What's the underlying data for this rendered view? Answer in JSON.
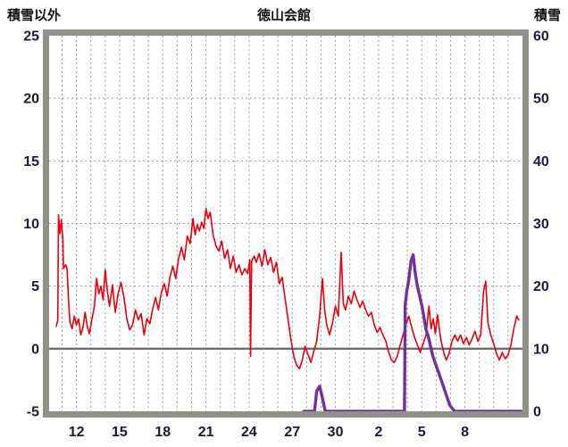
{
  "header": {
    "left_label": "積雪以外",
    "title": "徳山会館",
    "right_label": "積雪"
  },
  "chart_data": {
    "type": "line",
    "title": "徳山会館",
    "legend": "off",
    "grid": "on",
    "x_axis": {
      "description": "day of month, spanning from mid month (11) across month end into next month",
      "range": [
        10.1,
        43.0
      ],
      "daily_gridlines": true,
      "ticks": [
        {
          "day": 12,
          "label": "12"
        },
        {
          "day": 15,
          "label": "15"
        },
        {
          "day": 18,
          "label": "18"
        },
        {
          "day": 21,
          "label": "21"
        },
        {
          "day": 24,
          "label": "24"
        },
        {
          "day": 27,
          "label": "27"
        },
        {
          "day": 30,
          "label": "30"
        },
        {
          "day": 33,
          "label": "2"
        },
        {
          "day": 36,
          "label": "5"
        },
        {
          "day": 39,
          "label": "8"
        }
      ]
    },
    "y_left": {
      "label": "積雪以外",
      "range": [
        -5,
        25
      ],
      "ticks": [
        25,
        20,
        15,
        10,
        5,
        0,
        -5
      ],
      "gridline_values": [
        20,
        15,
        10,
        5
      ],
      "zero_line": 0
    },
    "y_right": {
      "label": "積雪",
      "range": [
        0,
        60
      ],
      "ticks": [
        60,
        50,
        40,
        30,
        20,
        10,
        0
      ]
    },
    "styles": {
      "background": "#ffffff",
      "frame_color": "#8f9287",
      "grid_color": "#9a9a9a",
      "zero_line_color": "#6e6e6e",
      "axis_text_color": "#1a1a3c",
      "non_snow_color": "#e8000f",
      "snow_color": "#7030a0"
    },
    "series": [
      {
        "name": "積雪以外",
        "axis": "left",
        "color": "#e8000f",
        "width": 1.6,
        "points": [
          [
            10.6,
            1.8
          ],
          [
            10.7,
            2.3
          ],
          [
            10.75,
            10.7
          ],
          [
            10.85,
            9.2
          ],
          [
            10.95,
            10.3
          ],
          [
            11.05,
            8.8
          ],
          [
            11.1,
            6.4
          ],
          [
            11.25,
            6.7
          ],
          [
            11.35,
            6.4
          ],
          [
            11.45,
            3.9
          ],
          [
            11.55,
            2.1
          ],
          [
            11.7,
            1.6
          ],
          [
            11.85,
            2.6
          ],
          [
            12.0,
            1.9
          ],
          [
            12.15,
            2.4
          ],
          [
            12.3,
            1.1
          ],
          [
            12.45,
            1.7
          ],
          [
            12.6,
            2.9
          ],
          [
            12.75,
            1.8
          ],
          [
            12.9,
            1.2
          ],
          [
            13.05,
            2.2
          ],
          [
            13.25,
            3.4
          ],
          [
            13.4,
            5.6
          ],
          [
            13.55,
            4.4
          ],
          [
            13.7,
            5.0
          ],
          [
            13.85,
            3.9
          ],
          [
            14.0,
            6.3
          ],
          [
            14.15,
            4.6
          ],
          [
            14.3,
            3.4
          ],
          [
            14.5,
            5.1
          ],
          [
            14.7,
            2.9
          ],
          [
            14.9,
            4.4
          ],
          [
            15.1,
            5.3
          ],
          [
            15.3,
            4.1
          ],
          [
            15.5,
            2.4
          ],
          [
            15.7,
            1.5
          ],
          [
            15.9,
            1.9
          ],
          [
            16.1,
            3.1
          ],
          [
            16.3,
            2.3
          ],
          [
            16.5,
            2.8
          ],
          [
            16.7,
            1.1
          ],
          [
            16.9,
            2.4
          ],
          [
            17.1,
            2.0
          ],
          [
            17.3,
            3.2
          ],
          [
            17.5,
            4.1
          ],
          [
            17.7,
            3.1
          ],
          [
            17.9,
            4.5
          ],
          [
            18.1,
            5.2
          ],
          [
            18.3,
            4.2
          ],
          [
            18.5,
            5.7
          ],
          [
            18.7,
            6.6
          ],
          [
            18.9,
            5.6
          ],
          [
            19.1,
            7.2
          ],
          [
            19.3,
            8.1
          ],
          [
            19.5,
            7.1
          ],
          [
            19.7,
            9.0
          ],
          [
            19.9,
            8.4
          ],
          [
            20.1,
            10.4
          ],
          [
            20.25,
            9.1
          ],
          [
            20.4,
            9.9
          ],
          [
            20.55,
            9.4
          ],
          [
            20.7,
            10.1
          ],
          [
            20.85,
            9.6
          ],
          [
            21.0,
            11.2
          ],
          [
            21.15,
            10.4
          ],
          [
            21.3,
            10.9
          ],
          [
            21.5,
            9.1
          ],
          [
            21.7,
            8.2
          ],
          [
            21.9,
            7.8
          ],
          [
            22.1,
            8.6
          ],
          [
            22.3,
            7.2
          ],
          [
            22.5,
            7.9
          ],
          [
            22.7,
            6.4
          ],
          [
            22.9,
            7.4
          ],
          [
            23.1,
            6.1
          ],
          [
            23.3,
            6.7
          ],
          [
            23.5,
            5.9
          ],
          [
            23.7,
            6.4
          ],
          [
            23.9,
            6.0
          ],
          [
            24.05,
            7.1
          ],
          [
            24.1,
            -0.6
          ],
          [
            24.18,
            7.0
          ],
          [
            24.35,
            7.4
          ],
          [
            24.5,
            6.9
          ],
          [
            24.7,
            7.6
          ],
          [
            24.9,
            6.6
          ],
          [
            25.1,
            7.9
          ],
          [
            25.3,
            6.7
          ],
          [
            25.5,
            7.3
          ],
          [
            25.7,
            6.1
          ],
          [
            25.9,
            6.9
          ],
          [
            26.1,
            5.2
          ],
          [
            26.3,
            5.7
          ],
          [
            26.5,
            4.0
          ],
          [
            26.7,
            2.4
          ],
          [
            26.9,
            0.8
          ],
          [
            27.1,
            -0.6
          ],
          [
            27.3,
            -1.3
          ],
          [
            27.5,
            -1.6
          ],
          [
            27.7,
            -0.9
          ],
          [
            27.9,
            0.2
          ],
          [
            28.1,
            -0.5
          ],
          [
            28.3,
            -1.1
          ],
          [
            28.5,
            -0.2
          ],
          [
            28.7,
            0.6
          ],
          [
            28.9,
            2.6
          ],
          [
            29.1,
            5.6
          ],
          [
            29.25,
            3.1
          ],
          [
            29.4,
            1.9
          ],
          [
            29.6,
            1.1
          ],
          [
            29.8,
            2.1
          ],
          [
            30.0,
            3.4
          ],
          [
            30.2,
            2.6
          ],
          [
            30.4,
            7.7
          ],
          [
            30.55,
            3.6
          ],
          [
            30.7,
            3.1
          ],
          [
            30.9,
            4.2
          ],
          [
            31.1,
            3.6
          ],
          [
            31.3,
            4.6
          ],
          [
            31.5,
            3.9
          ],
          [
            31.7,
            3.3
          ],
          [
            31.9,
            3.8
          ],
          [
            32.1,
            3.1
          ],
          [
            32.3,
            2.6
          ],
          [
            32.5,
            2.9
          ],
          [
            32.7,
            1.9
          ],
          [
            32.9,
            1.3
          ],
          [
            33.1,
            1.7
          ],
          [
            33.3,
            1.1
          ],
          [
            33.5,
            0.6
          ],
          [
            33.7,
            -0.3
          ],
          [
            33.9,
            -0.9
          ],
          [
            34.1,
            -1.1
          ],
          [
            34.3,
            -0.6
          ],
          [
            34.5,
            0.3
          ],
          [
            34.7,
            1.1
          ],
          [
            34.9,
            1.9
          ],
          [
            35.1,
            2.6
          ],
          [
            35.3,
            1.7
          ],
          [
            35.5,
            0.9
          ],
          [
            35.7,
            0.3
          ],
          [
            35.9,
            -0.3
          ],
          [
            36.1,
            0.4
          ],
          [
            36.3,
            1.1
          ],
          [
            36.5,
            3.4
          ],
          [
            36.65,
            1.6
          ],
          [
            36.8,
            2.4
          ],
          [
            36.95,
            1.2
          ],
          [
            37.1,
            2.7
          ],
          [
            37.3,
            0.9
          ],
          [
            37.5,
            -0.2
          ],
          [
            37.7,
            -0.9
          ],
          [
            37.9,
            -0.4
          ],
          [
            38.1,
            0.6
          ],
          [
            38.3,
            1.1
          ],
          [
            38.5,
            0.6
          ],
          [
            38.7,
            1.1
          ],
          [
            38.9,
            0.4
          ],
          [
            39.1,
            0.9
          ],
          [
            39.3,
            0.3
          ],
          [
            39.5,
            0.8
          ],
          [
            39.7,
            1.4
          ],
          [
            39.9,
            0.6
          ],
          [
            40.1,
            1.1
          ],
          [
            40.3,
            4.6
          ],
          [
            40.45,
            5.4
          ],
          [
            40.6,
            2.1
          ],
          [
            40.8,
            1.1
          ],
          [
            41.0,
            0.4
          ],
          [
            41.2,
            -0.4
          ],
          [
            41.4,
            -0.9
          ],
          [
            41.6,
            -0.3
          ],
          [
            41.8,
            -0.8
          ],
          [
            42.0,
            -0.5
          ],
          [
            42.2,
            0.3
          ],
          [
            42.4,
            1.6
          ],
          [
            42.6,
            2.6
          ],
          [
            42.75,
            2.3
          ]
        ]
      },
      {
        "name": "積雪",
        "axis": "right",
        "color": "#7030a0",
        "width": 3.4,
        "points": [
          [
            27.8,
            0
          ],
          [
            28.55,
            0
          ],
          [
            28.7,
            3.2
          ],
          [
            28.9,
            4.0
          ],
          [
            29.05,
            2.6
          ],
          [
            29.2,
            1.0
          ],
          [
            29.3,
            0
          ],
          [
            34.8,
            0
          ],
          [
            34.85,
            17
          ],
          [
            34.95,
            19
          ],
          [
            35.1,
            21
          ],
          [
            35.25,
            24
          ],
          [
            35.4,
            25
          ],
          [
            35.55,
            22
          ],
          [
            35.7,
            20
          ],
          [
            35.85,
            18.5
          ],
          [
            36.0,
            17
          ],
          [
            36.15,
            15
          ],
          [
            36.3,
            13
          ],
          [
            36.45,
            12
          ],
          [
            36.6,
            10.5
          ],
          [
            36.75,
            9
          ],
          [
            36.9,
            8
          ],
          [
            37.05,
            7
          ],
          [
            37.2,
            6
          ],
          [
            37.35,
            5
          ],
          [
            37.5,
            4
          ],
          [
            37.65,
            3
          ],
          [
            37.8,
            2
          ],
          [
            37.95,
            1
          ],
          [
            38.1,
            0.5
          ],
          [
            38.3,
            0
          ],
          [
            42.9,
            0
          ]
        ]
      }
    ]
  }
}
